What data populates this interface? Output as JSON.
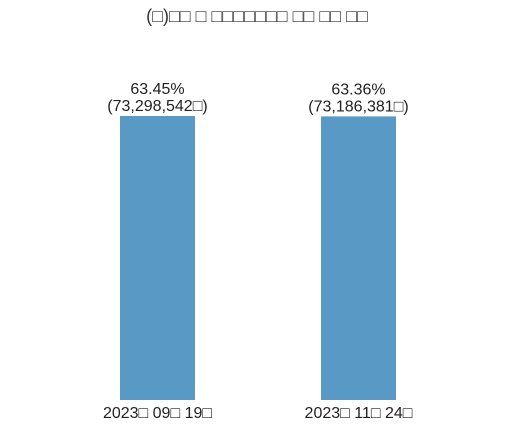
{
  "chart_data": {
    "type": "bar",
    "title": "(□)□□ □ □□□□□□□ □□ □□ □□",
    "categories": [
      "2023□ 09□ 19□",
      "2023□ 11□ 24□"
    ],
    "series": [
      {
        "values": [
          63.45,
          63.36
        ],
        "labels": [
          [
            "63.45%",
            "(73,298,542□)"
          ],
          [
            "63.36%",
            "(73,186,381□)"
          ]
        ],
        "color": "#5899c6"
      }
    ],
    "ylim": [
      0,
      63.45
    ],
    "grid": false,
    "legend": "none",
    "colors": {
      "bar": "#5899c6",
      "text": "#222222",
      "title": "#333333",
      "background": "#ffffff"
    }
  }
}
